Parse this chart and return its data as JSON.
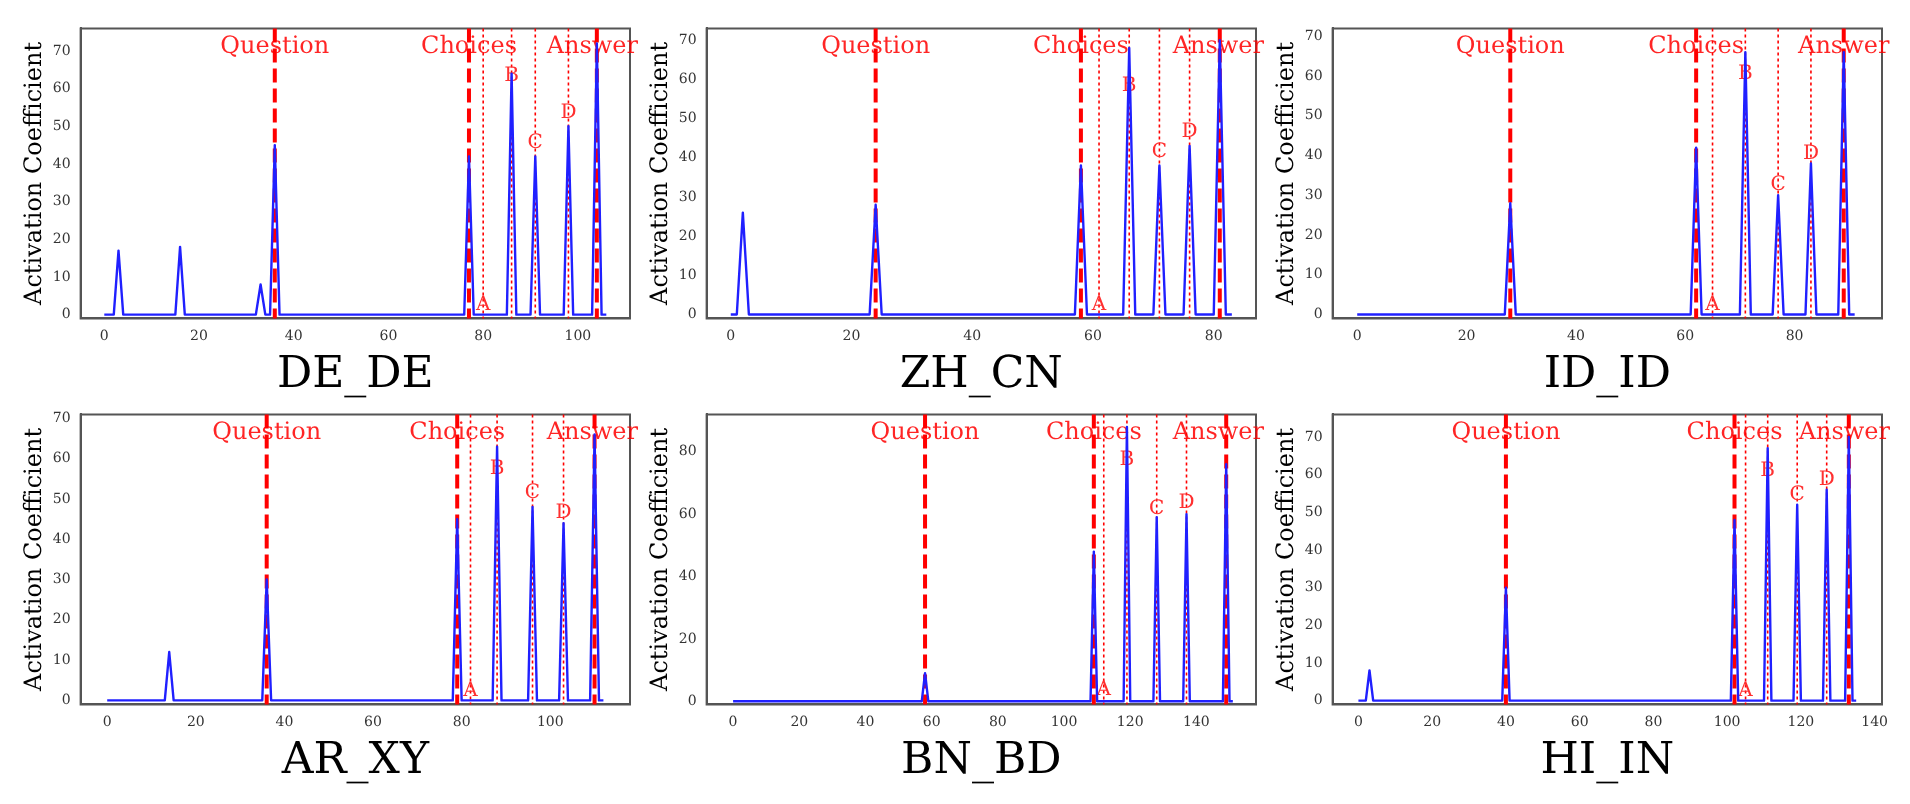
{
  "chart_data": [
    {
      "type": "line",
      "xlabel": "DE_DE",
      "ylabel": "Activation Coefficient",
      "xlim": [
        -5,
        111
      ],
      "ylim": [
        -1,
        76
      ],
      "xticks": [
        0,
        20,
        40,
        60,
        80,
        100
      ],
      "yticks": [
        0,
        10,
        20,
        30,
        40,
        50,
        60,
        70
      ],
      "marker": "none",
      "line_style": "solid",
      "series": [
        {
          "color": "#2020ff",
          "x": [
            0,
            2,
            3,
            4,
            15,
            16,
            17,
            32,
            33,
            34,
            35,
            36,
            37,
            76,
            77,
            78,
            85,
            86,
            87,
            90,
            91,
            92,
            97,
            98,
            99,
            103,
            104,
            105,
            106
          ],
          "values": [
            0,
            0,
            17,
            0,
            0,
            18,
            0,
            0,
            8,
            0,
            0,
            45,
            0,
            0,
            42,
            0,
            0,
            64,
            0,
            0,
            42,
            0,
            0,
            50,
            0,
            0,
            72,
            0,
            0
          ]
        }
      ],
      "ref_lines": [
        {
          "axis": "x",
          "value": 36,
          "label": "Question",
          "color": "#ff0000",
          "line_style": "dashed"
        },
        {
          "axis": "x",
          "value": 77,
          "label": "Choices",
          "color": "#ff0000",
          "line_style": "dashed"
        },
        {
          "axis": "x",
          "value": 104,
          "label": "Answer",
          "color": "#ff0000",
          "line_style": "dashed"
        },
        {
          "axis": "x",
          "value": 80,
          "color": "#ff0000",
          "line_style": "dotted"
        },
        {
          "axis": "x",
          "value": 86,
          "color": "#ff0000",
          "line_style": "dotted"
        },
        {
          "axis": "x",
          "value": 91,
          "color": "#ff0000",
          "line_style": "dotted"
        },
        {
          "axis": "x",
          "value": 98,
          "color": "#ff0000",
          "line_style": "dotted"
        }
      ],
      "annotations": [
        {
          "text": "A",
          "x": 80,
          "y": 2
        },
        {
          "text": "B",
          "x": 86,
          "y": 67
        },
        {
          "text": "C",
          "x": 91,
          "y": 45
        },
        {
          "text": "D",
          "x": 98,
          "y": 53
        }
      ]
    },
    {
      "type": "line",
      "xlabel": "ZH_CN",
      "ylabel": "Activation Coefficient",
      "xlim": [
        -4,
        87
      ],
      "ylim": [
        -1,
        73
      ],
      "xticks": [
        0,
        20,
        40,
        60,
        80
      ],
      "yticks": [
        0,
        10,
        20,
        30,
        40,
        50,
        60,
        70
      ],
      "marker": "none",
      "line_style": "solid",
      "series": [
        {
          "color": "#2020ff",
          "x": [
            0,
            1,
            2,
            3,
            23,
            24,
            25,
            57,
            58,
            59,
            65,
            66,
            67,
            70,
            71,
            72,
            75,
            76,
            77,
            80,
            81,
            82,
            83
          ],
          "values": [
            0,
            0,
            26,
            0,
            0,
            28,
            0,
            0,
            38,
            0,
            0,
            68,
            0,
            0,
            38,
            0,
            0,
            43,
            0,
            0,
            70,
            0,
            0
          ]
        }
      ],
      "ref_lines": [
        {
          "axis": "x",
          "value": 24,
          "label": "Question",
          "color": "#ff0000",
          "line_style": "dashed"
        },
        {
          "axis": "x",
          "value": 58,
          "label": "Choices",
          "color": "#ff0000",
          "line_style": "dashed"
        },
        {
          "axis": "x",
          "value": 81,
          "label": "Answer",
          "color": "#ff0000",
          "line_style": "dashed"
        },
        {
          "axis": "x",
          "value": 61,
          "color": "#ff0000",
          "line_style": "dotted"
        },
        {
          "axis": "x",
          "value": 66,
          "color": "#ff0000",
          "line_style": "dotted"
        },
        {
          "axis": "x",
          "value": 71,
          "color": "#ff0000",
          "line_style": "dotted"
        },
        {
          "axis": "x",
          "value": 76,
          "color": "#ff0000",
          "line_style": "dotted"
        }
      ],
      "annotations": [
        {
          "text": "A",
          "x": 61,
          "y": 2
        },
        {
          "text": "B",
          "x": 66,
          "y": 70
        },
        {
          "text": "C",
          "x": 71,
          "y": 41
        },
        {
          "text": "D",
          "x": 76,
          "y": 46
        }
      ]
    },
    {
      "type": "line",
      "xlabel": "ID_ID",
      "ylabel": "Activation Coefficient",
      "xlim": [
        -4.5,
        96
      ],
      "ylim": [
        -1,
        72
      ],
      "xticks": [
        0,
        20,
        40,
        60,
        80
      ],
      "yticks": [
        0,
        10,
        20,
        30,
        40,
        50,
        60,
        70
      ],
      "marker": "none",
      "line_style": "solid",
      "series": [
        {
          "color": "#2020ff",
          "x": [
            0,
            27,
            28,
            29,
            61,
            62,
            63,
            70,
            71,
            72,
            76,
            77,
            78,
            82,
            83,
            84,
            88,
            89,
            90,
            91
          ],
          "values": [
            0,
            0,
            28,
            0,
            0,
            42,
            0,
            0,
            66,
            0,
            0,
            30,
            0,
            0,
            38,
            0,
            0,
            66,
            0,
            0
          ]
        }
      ],
      "ref_lines": [
        {
          "axis": "x",
          "value": 28,
          "label": "Question",
          "color": "#ff0000",
          "line_style": "dashed"
        },
        {
          "axis": "x",
          "value": 62,
          "label": "Choices",
          "color": "#ff0000",
          "line_style": "dashed"
        },
        {
          "axis": "x",
          "value": 89,
          "label": "Answer",
          "color": "#ff0000",
          "line_style": "dashed"
        },
        {
          "axis": "x",
          "value": 65,
          "color": "#ff0000",
          "line_style": "dotted"
        },
        {
          "axis": "x",
          "value": 71,
          "color": "#ff0000",
          "line_style": "dotted"
        },
        {
          "axis": "x",
          "value": 77,
          "color": "#ff0000",
          "line_style": "dotted"
        },
        {
          "axis": "x",
          "value": 83,
          "color": "#ff0000",
          "line_style": "dotted"
        }
      ],
      "annotations": [
        {
          "text": "A",
          "x": 65,
          "y": 2
        },
        {
          "text": "B",
          "x": 71,
          "y": 68
        },
        {
          "text": "C",
          "x": 77,
          "y": 32
        },
        {
          "text": "D",
          "x": 83,
          "y": 40
        }
      ]
    },
    {
      "type": "line",
      "xlabel": "AR_XY",
      "ylabel": "Activation Coefficient",
      "xlim": [
        -6,
        118
      ],
      "ylim": [
        -1,
        71
      ],
      "xticks": [
        0,
        20,
        40,
        60,
        80,
        100
      ],
      "yticks": [
        0,
        10,
        20,
        30,
        40,
        50,
        60,
        70
      ],
      "marker": "none",
      "line_style": "solid",
      "series": [
        {
          "color": "#2020ff",
          "x": [
            0,
            13,
            14,
            15,
            35,
            36,
            37,
            78,
            79,
            80,
            87,
            88,
            89,
            95,
            96,
            97,
            102,
            103,
            104,
            109,
            110,
            111,
            112
          ],
          "values": [
            0,
            0,
            12,
            0,
            0,
            30,
            0,
            0,
            45,
            0,
            0,
            63,
            0,
            0,
            48,
            0,
            0,
            44,
            0,
            0,
            66,
            0,
            0
          ]
        }
      ],
      "ref_lines": [
        {
          "axis": "x",
          "value": 36,
          "label": "Question",
          "color": "#ff0000",
          "line_style": "dashed"
        },
        {
          "axis": "x",
          "value": 79,
          "label": "Choices",
          "color": "#ff0000",
          "line_style": "dashed"
        },
        {
          "axis": "x",
          "value": 110,
          "label": "Answer",
          "color": "#ff0000",
          "line_style": "dashed"
        },
        {
          "axis": "x",
          "value": 82,
          "color": "#ff0000",
          "line_style": "dotted"
        },
        {
          "axis": "x",
          "value": 88,
          "color": "#ff0000",
          "line_style": "dotted"
        },
        {
          "axis": "x",
          "value": 96,
          "color": "#ff0000",
          "line_style": "dotted"
        },
        {
          "axis": "x",
          "value": 103,
          "color": "#ff0000",
          "line_style": "dotted"
        }
      ],
      "annotations": [
        {
          "text": "A",
          "x": 82,
          "y": 2
        },
        {
          "text": "B",
          "x": 88,
          "y": 65
        },
        {
          "text": "C",
          "x": 96,
          "y": 51
        },
        {
          "text": "D",
          "x": 103,
          "y": 46
        }
      ]
    },
    {
      "type": "line",
      "xlabel": "BN_BD",
      "ylabel": "Activation Coefficient",
      "xlim": [
        -8,
        158
      ],
      "ylim": [
        -1,
        92
      ],
      "xticks": [
        0,
        20,
        40,
        60,
        80,
        100,
        120,
        140
      ],
      "yticks": [
        0,
        20,
        40,
        60,
        80
      ],
      "marker": "none",
      "line_style": "solid",
      "series": [
        {
          "color": "#2020ff",
          "x": [
            0,
            57,
            58,
            59,
            108,
            109,
            110,
            118,
            119,
            120,
            127,
            128,
            129,
            136,
            137,
            138,
            148,
            149,
            150,
            151
          ],
          "values": [
            0,
            0,
            9,
            0,
            0,
            48,
            0,
            0,
            88,
            0,
            0,
            59,
            0,
            0,
            60,
            0,
            0,
            76,
            0,
            0
          ]
        }
      ],
      "ref_lines": [
        {
          "axis": "x",
          "value": 58,
          "label": "Question",
          "color": "#ff0000",
          "line_style": "dashed"
        },
        {
          "axis": "x",
          "value": 109,
          "label": "Choices",
          "color": "#ff0000",
          "line_style": "dashed"
        },
        {
          "axis": "x",
          "value": 149,
          "label": "Answer",
          "color": "#ff0000",
          "line_style": "dashed"
        },
        {
          "axis": "x",
          "value": 112,
          "color": "#ff0000",
          "line_style": "dotted"
        },
        {
          "axis": "x",
          "value": 119,
          "color": "#ff0000",
          "line_style": "dotted"
        },
        {
          "axis": "x",
          "value": 128,
          "color": "#ff0000",
          "line_style": "dotted"
        },
        {
          "axis": "x",
          "value": 137,
          "color": "#ff0000",
          "line_style": "dotted"
        }
      ],
      "annotations": [
        {
          "text": "A",
          "x": 112,
          "y": 3
        },
        {
          "text": "B",
          "x": 119,
          "y": 87
        },
        {
          "text": "C",
          "x": 128,
          "y": 61
        },
        {
          "text": "D",
          "x": 137,
          "y": 63
        }
      ]
    },
    {
      "type": "line",
      "xlabel": "HI_IN",
      "ylabel": "Activation Coefficient",
      "xlim": [
        -7,
        142
      ],
      "ylim": [
        -1,
        76
      ],
      "xticks": [
        0,
        20,
        40,
        60,
        80,
        100,
        120,
        140
      ],
      "yticks": [
        0,
        10,
        20,
        30,
        40,
        50,
        60,
        70
      ],
      "marker": "none",
      "line_style": "solid",
      "series": [
        {
          "color": "#2020ff",
          "x": [
            0,
            2,
            3,
            4,
            39,
            40,
            41,
            101,
            102,
            103,
            110,
            111,
            112,
            118,
            119,
            120,
            126,
            127,
            128,
            132,
            133,
            134,
            135
          ],
          "values": [
            0,
            0,
            8,
            0,
            0,
            30,
            0,
            0,
            48,
            0,
            0,
            67,
            0,
            0,
            52,
            0,
            0,
            56,
            0,
            0,
            70,
            0,
            0
          ]
        }
      ],
      "ref_lines": [
        {
          "axis": "x",
          "value": 40,
          "label": "Question",
          "color": "#ff0000",
          "line_style": "dashed"
        },
        {
          "axis": "x",
          "value": 102,
          "label": "Choices",
          "color": "#ff0000",
          "line_style": "dashed"
        },
        {
          "axis": "x",
          "value": 133,
          "label": "Answer",
          "color": "#ff0000",
          "line_style": "dashed"
        },
        {
          "axis": "x",
          "value": 105,
          "color": "#ff0000",
          "line_style": "dotted"
        },
        {
          "axis": "x",
          "value": 111,
          "color": "#ff0000",
          "line_style": "dotted"
        },
        {
          "axis": "x",
          "value": 119,
          "color": "#ff0000",
          "line_style": "dotted"
        },
        {
          "axis": "x",
          "value": 127,
          "color": "#ff0000",
          "line_style": "dotted"
        }
      ],
      "annotations": [
        {
          "text": "A",
          "x": 105,
          "y": 2
        },
        {
          "text": "B",
          "x": 111,
          "y": 69
        },
        {
          "text": "C",
          "x": 119,
          "y": 54
        },
        {
          "text": "D",
          "x": 127,
          "y": 58
        }
      ]
    }
  ]
}
